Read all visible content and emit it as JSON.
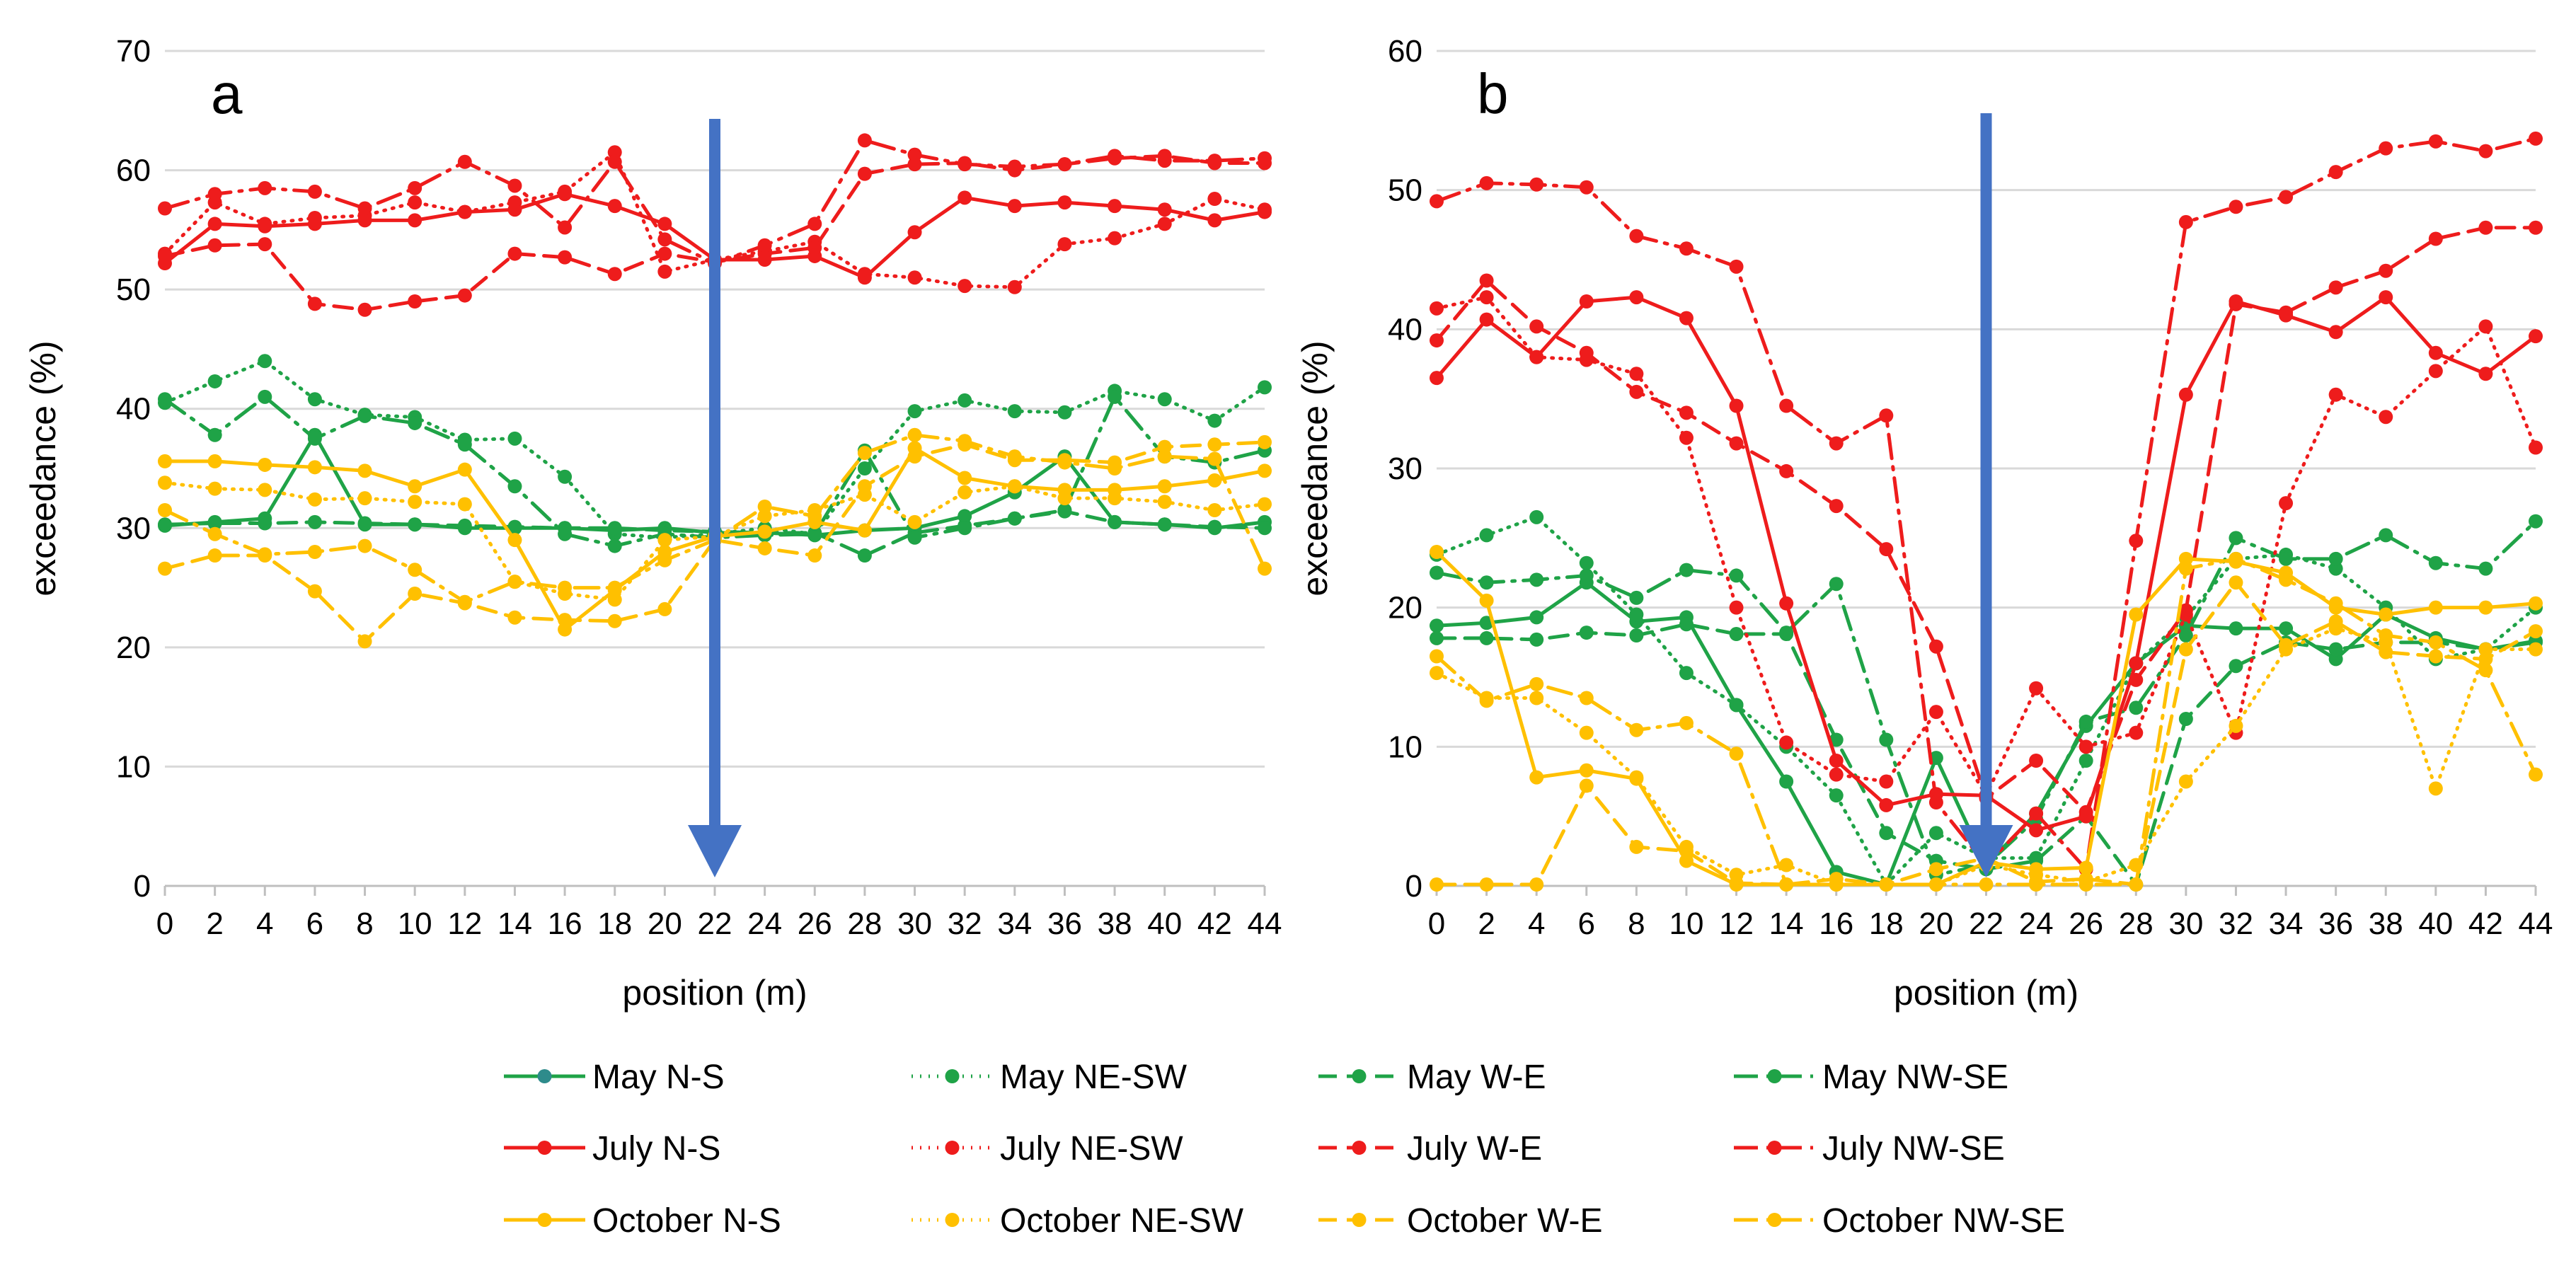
{
  "colors": {
    "may": "#1fa347",
    "july": "#ee1c1c",
    "october": "#ffc000",
    "arrow": "#4472c4",
    "may_marker_ns": "#2e8b8b"
  },
  "chart_data": [
    {
      "type": "line",
      "panel_label": "a",
      "xlabel": "position (m)",
      "ylabel": "exceedance (%)",
      "x": [
        0,
        2,
        4,
        6,
        8,
        10,
        12,
        14,
        16,
        18,
        20,
        22,
        24,
        26,
        28,
        30,
        32,
        34,
        36,
        38,
        40,
        42,
        44
      ],
      "x_tick_labels": [
        "0",
        "2",
        "4",
        "6",
        "8",
        "10",
        "12",
        "14",
        "16",
        "18",
        "20",
        "22",
        "24",
        "26",
        "28",
        "30",
        "32",
        "34",
        "36",
        "38",
        "40",
        "42",
        "44"
      ],
      "ylim": [
        0,
        70
      ],
      "y_ticks": [
        0,
        10,
        20,
        30,
        40,
        50,
        60,
        70
      ],
      "y_tick_labels": [
        "0",
        "10",
        "20",
        "30",
        "40",
        "50",
        "60",
        "70"
      ],
      "grid": true,
      "arrow_at_x": 22,
      "series": [
        {
          "name": "May N-S",
          "month": "may",
          "style": "solid",
          "values": [
            30.2,
            30.5,
            30.8,
            37.8,
            30.3,
            30.3,
            30.0,
            30.0,
            30.0,
            29.8,
            30.0,
            29.6,
            29.6,
            29.4,
            29.8,
            30.0,
            31.0,
            33.0,
            36.0,
            30.5,
            30.3,
            30.0,
            30.5
          ]
        },
        {
          "name": "May NE-SW",
          "month": "may",
          "style": "dotted",
          "values": [
            40.5,
            42.3,
            44.0,
            40.8,
            39.5,
            39.3,
            37.4,
            37.5,
            34.3,
            29.5,
            29.2,
            29.5,
            30.0,
            29.5,
            35.0,
            39.8,
            40.7,
            39.8,
            39.7,
            41.5,
            40.8,
            39.0,
            41.8
          ]
        },
        {
          "name": "May W-E",
          "month": "may",
          "style": "dashed",
          "values": [
            30.3,
            30.4,
            30.4,
            30.5,
            30.4,
            30.3,
            30.2,
            30.1,
            30.0,
            30.0,
            29.8,
            29.7,
            29.6,
            29.6,
            27.7,
            29.6,
            30.2,
            30.8,
            31.4,
            30.5,
            30.3,
            30.1,
            30.0
          ]
        },
        {
          "name": "May NW-SE",
          "month": "may",
          "style": "dashdot",
          "values": [
            40.8,
            37.8,
            41.0,
            37.5,
            39.4,
            38.8,
            37.0,
            33.5,
            29.5,
            28.5,
            29.5,
            29.2,
            29.4,
            29.5,
            36.5,
            29.2,
            30.0,
            30.8,
            31.5,
            41.0,
            36.0,
            35.5,
            36.5
          ]
        },
        {
          "name": "July N-S",
          "month": "july",
          "style": "solid",
          "values": [
            52.2,
            55.5,
            55.3,
            55.5,
            55.8,
            55.8,
            56.5,
            56.7,
            58.0,
            57.0,
            55.5,
            52.5,
            52.5,
            52.8,
            51.0,
            54.8,
            57.7,
            57.0,
            57.3,
            57.0,
            56.7,
            55.8,
            56.5
          ]
        },
        {
          "name": "July NE-SW",
          "month": "july",
          "style": "dotted",
          "values": [
            53.0,
            57.3,
            55.5,
            56.0,
            56.2,
            57.3,
            56.5,
            57.3,
            58.2,
            61.5,
            51.5,
            52.5,
            53.2,
            54.0,
            51.3,
            51.0,
            50.3,
            50.2,
            53.8,
            54.3,
            55.5,
            57.6,
            56.7
          ]
        },
        {
          "name": "July W-E",
          "month": "july",
          "style": "dashed",
          "values": [
            52.8,
            53.7,
            53.8,
            48.8,
            48.3,
            49.0,
            49.5,
            53.0,
            52.7,
            51.3,
            53.0,
            52.3,
            53.0,
            53.5,
            59.7,
            60.5,
            60.6,
            60.0,
            60.5,
            61.0,
            61.2,
            60.6,
            60.6
          ]
        },
        {
          "name": "July NW-SE",
          "month": "july",
          "style": "dashdot",
          "values": [
            56.8,
            58.0,
            58.5,
            58.2,
            56.8,
            58.5,
            60.7,
            58.7,
            55.2,
            60.7,
            54.2,
            52.2,
            53.7,
            55.5,
            62.5,
            61.3,
            60.5,
            60.3,
            60.5,
            61.2,
            60.8,
            60.8,
            61.0
          ]
        },
        {
          "name": "October N-S",
          "month": "october",
          "style": "solid",
          "values": [
            35.6,
            35.6,
            35.3,
            35.1,
            34.8,
            33.5,
            34.9,
            29.0,
            21.5,
            24.8,
            28.0,
            29.3,
            29.7,
            30.5,
            29.8,
            36.7,
            34.2,
            33.5,
            33.2,
            33.2,
            33.5,
            34.0,
            34.8
          ]
        },
        {
          "name": "October NE-SW",
          "month": "october",
          "style": "dotted",
          "values": [
            33.8,
            33.3,
            33.2,
            32.4,
            32.5,
            32.2,
            32.0,
            25.5,
            24.5,
            24.0,
            29.0,
            29.3,
            31.0,
            31.5,
            32.8,
            30.5,
            33.0,
            33.5,
            32.5,
            32.5,
            32.2,
            31.5,
            32.0
          ]
        },
        {
          "name": "October W-E",
          "month": "october",
          "style": "dashed",
          "values": [
            26.6,
            27.7,
            27.7,
            24.7,
            20.5,
            24.5,
            23.7,
            22.5,
            22.3,
            22.2,
            23.2,
            29.0,
            28.3,
            27.7,
            33.5,
            36.0,
            37.0,
            35.7,
            35.7,
            35.5,
            36.8,
            37.0,
            37.2
          ]
        },
        {
          "name": "October NW-SE",
          "month": "october",
          "style": "dashdot",
          "values": [
            31.5,
            29.5,
            27.8,
            28.0,
            28.5,
            26.5,
            23.8,
            25.5,
            25.0,
            25.0,
            27.3,
            29.0,
            31.8,
            31.0,
            36.3,
            37.8,
            37.3,
            36.0,
            35.5,
            35.0,
            36.0,
            35.8,
            26.6
          ]
        }
      ]
    },
    {
      "type": "line",
      "panel_label": "b",
      "xlabel": "position (m)",
      "ylabel": "exceedance (%)",
      "x": [
        0,
        2,
        4,
        6,
        8,
        10,
        12,
        14,
        16,
        18,
        20,
        22,
        24,
        26,
        28,
        30,
        32,
        34,
        36,
        38,
        40,
        42,
        44
      ],
      "x_tick_labels": [
        "0",
        "2",
        "4",
        "6",
        "8",
        "10",
        "12",
        "14",
        "16",
        "18",
        "20",
        "22",
        "24",
        "26",
        "28",
        "30",
        "32",
        "34",
        "36",
        "38",
        "40",
        "42",
        "44"
      ],
      "ylim": [
        0,
        60
      ],
      "y_ticks": [
        0,
        10,
        20,
        30,
        40,
        50,
        60
      ],
      "y_tick_labels": [
        "0",
        "10",
        "20",
        "30",
        "40",
        "50",
        "60"
      ],
      "grid": true,
      "arrow_at_x": 22,
      "series": [
        {
          "name": "May N-S",
          "month": "may",
          "style": "solid",
          "values": [
            18.7,
            18.9,
            19.3,
            21.8,
            19.0,
            19.3,
            13.0,
            7.5,
            1.0,
            0.1,
            9.2,
            1.5,
            5.2,
            11.5,
            16.0,
            18.7,
            18.5,
            18.5,
            16.3,
            19.5,
            17.8,
            17.0,
            17.6
          ]
        },
        {
          "name": "May NE-SW",
          "month": "may",
          "style": "dotted",
          "values": [
            23.8,
            25.2,
            26.5,
            23.2,
            19.5,
            15.3,
            13.0,
            10.0,
            6.5,
            0.1,
            3.8,
            2.0,
            2.0,
            9.0,
            16.0,
            19.3,
            23.5,
            23.8,
            22.8,
            20.0,
            16.3,
            17.0,
            20.0
          ]
        },
        {
          "name": "May W-E",
          "month": "may",
          "style": "dashed",
          "values": [
            17.8,
            17.8,
            17.7,
            18.2,
            18.0,
            18.8,
            18.1,
            18.1,
            10.5,
            3.8,
            1.8,
            1.2,
            1.8,
            5.0,
            0.1,
            12.0,
            15.8,
            17.5,
            17.0,
            17.5,
            17.5,
            17.0,
            17.5
          ]
        },
        {
          "name": "May NW-SE",
          "month": "may",
          "style": "dashdot",
          "values": [
            22.5,
            21.8,
            22.0,
            22.3,
            20.7,
            22.7,
            22.3,
            18.2,
            21.7,
            10.5,
            0.8,
            1.5,
            4.8,
            11.8,
            12.8,
            18.0,
            25.0,
            23.5,
            23.5,
            25.2,
            23.2,
            22.8,
            26.2
          ]
        },
        {
          "name": "July N-S",
          "month": "july",
          "style": "solid",
          "values": [
            36.5,
            40.7,
            38.0,
            42.0,
            42.3,
            40.8,
            34.5,
            20.3,
            9.0,
            5.8,
            6.6,
            6.5,
            4.0,
            5.0,
            16.0,
            35.3,
            42.0,
            41.0,
            39.8,
            42.3,
            38.3,
            36.8,
            39.5
          ]
        },
        {
          "name": "July NE-SW",
          "month": "july",
          "style": "dotted",
          "values": [
            41.5,
            42.3,
            38.0,
            37.8,
            36.8,
            32.2,
            20.0,
            10.3,
            8.0,
            7.5,
            12.5,
            6.5,
            14.2,
            10.0,
            11.0,
            19.5,
            11.0,
            27.5,
            35.3,
            33.7,
            37.0,
            40.2,
            31.5
          ]
        },
        {
          "name": "July W-E",
          "month": "july",
          "style": "dashed",
          "values": [
            39.2,
            43.5,
            40.2,
            38.3,
            35.5,
            34.0,
            31.8,
            29.8,
            27.3,
            24.2,
            17.2,
            6.3,
            9.0,
            5.3,
            14.8,
            19.8,
            41.8,
            41.2,
            43.0,
            44.2,
            46.5,
            47.3,
            47.3
          ]
        },
        {
          "name": "July NW-SE",
          "month": "july",
          "style": "dashdot",
          "values": [
            49.2,
            50.5,
            50.4,
            50.2,
            46.7,
            45.8,
            44.5,
            34.5,
            31.8,
            33.8,
            6.0,
            1.5,
            5.2,
            1.2,
            24.8,
            47.7,
            48.8,
            49.5,
            51.3,
            53.0,
            53.5,
            52.8,
            53.7
          ]
        },
        {
          "name": "October N-S",
          "month": "october",
          "style": "solid",
          "values": [
            24.0,
            20.5,
            7.8,
            8.3,
            7.7,
            1.8,
            0.1,
            0.1,
            0.1,
            0.1,
            0.1,
            1.7,
            1.2,
            1.3,
            19.5,
            23.5,
            23.3,
            22.5,
            20.0,
            19.5,
            20.0,
            20.0,
            20.3
          ]
        },
        {
          "name": "October NE-SW",
          "month": "october",
          "style": "dotted",
          "values": [
            15.3,
            13.5,
            13.5,
            11.0,
            7.8,
            2.8,
            0.8,
            1.5,
            0.1,
            0.1,
            0.1,
            1.5,
            0.8,
            0.3,
            1.5,
            7.5,
            11.5,
            17.0,
            18.5,
            17.5,
            7.0,
            17.0,
            17.0
          ]
        },
        {
          "name": "October W-E",
          "month": "october",
          "style": "dashed",
          "values": [
            0.1,
            0.1,
            0.1,
            7.2,
            2.8,
            2.5,
            0.2,
            0.1,
            0.5,
            0.1,
            1.2,
            2.0,
            0.3,
            0.5,
            0.1,
            17.0,
            21.8,
            17.3,
            19.0,
            16.8,
            16.5,
            16.3,
            18.3
          ]
        },
        {
          "name": "October NW-SE",
          "month": "october",
          "style": "dashdot",
          "values": [
            16.5,
            13.3,
            14.5,
            13.5,
            11.2,
            11.7,
            9.5,
            0.1,
            0.1,
            0.1,
            0.1,
            0.1,
            0.1,
            0.1,
            0.1,
            22.8,
            23.5,
            22.0,
            20.3,
            18.0,
            17.5,
            15.5,
            8.0
          ]
        }
      ]
    }
  ],
  "legend": {
    "items": [
      {
        "label": "May N-S",
        "month": "may",
        "style": "solid",
        "marker_color": "may_marker_ns"
      },
      {
        "label": "May NE-SW",
        "month": "may",
        "style": "dotted"
      },
      {
        "label": "May W-E",
        "month": "may",
        "style": "dashed"
      },
      {
        "label": "May NW-SE",
        "month": "may",
        "style": "dashdot"
      },
      {
        "label": "July N-S",
        "month": "july",
        "style": "solid"
      },
      {
        "label": "July NE-SW",
        "month": "july",
        "style": "dotted"
      },
      {
        "label": "July W-E",
        "month": "july",
        "style": "dashed"
      },
      {
        "label": "July NW-SE",
        "month": "july",
        "style": "dashdot"
      },
      {
        "label": "October N-S",
        "month": "october",
        "style": "solid"
      },
      {
        "label": "October NE-SW",
        "month": "october",
        "style": "dotted"
      },
      {
        "label": "October W-E",
        "month": "october",
        "style": "dashed"
      },
      {
        "label": "October NW-SE",
        "month": "october",
        "style": "dashdot"
      }
    ]
  }
}
